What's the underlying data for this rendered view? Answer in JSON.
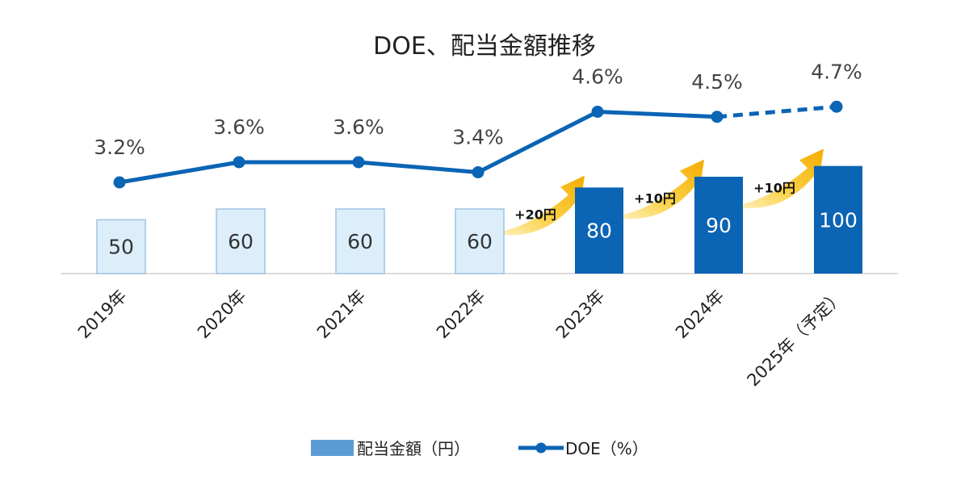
{
  "chart_data": {
    "type": "bar",
    "title": "DOE、配当金額推移",
    "categories": [
      "2019年",
      "2020年",
      "2021年",
      "2022年",
      "2023年",
      "2024年",
      "2025年（予定）"
    ],
    "series": [
      {
        "name": "配当金額（円）",
        "type": "bar",
        "values": [
          50,
          60,
          60,
          60,
          80,
          90,
          100
        ],
        "labels": [
          "50",
          "60",
          "60",
          "60",
          "80",
          "90",
          "100"
        ],
        "colors": [
          "#ddeefb",
          "#ddeefb",
          "#ddeefb",
          "#ddeefb",
          "#0b64b4",
          "#0b64b4",
          "#0b64b4"
        ]
      },
      {
        "name": "DOE（%）",
        "type": "line",
        "values": [
          3.2,
          3.6,
          3.6,
          3.4,
          4.6,
          4.5,
          4.7
        ],
        "labels": [
          "3.2%",
          "3.6%",
          "3.6%",
          "3.4%",
          "4.6%",
          "4.5%",
          "4.7%"
        ],
        "dashed_last_segment": true,
        "color": "#0b64b4"
      }
    ],
    "annotations": [
      {
        "between": [
          "2022年",
          "2023年"
        ],
        "text": "+20円"
      },
      {
        "between": [
          "2023年",
          "2024年"
        ],
        "text": "+10円"
      },
      {
        "between": [
          "2024年",
          "2025年（予定）"
        ],
        "text": "+10円"
      }
    ],
    "legend": {
      "position": "bottom",
      "entries": [
        "配当金額（円）",
        "DOE（%）"
      ]
    },
    "bar_ylim": [
      0,
      150
    ],
    "line_ylim": [
      0,
      6.4
    ],
    "colors": {
      "bar_past": "#ddeefb",
      "bar_past_border": "#9ec3e2",
      "bar_current": "#0b64b4",
      "line": "#0b64b4",
      "arrow": "#f7b500",
      "legend_bar": "#5b9bd5"
    }
  }
}
